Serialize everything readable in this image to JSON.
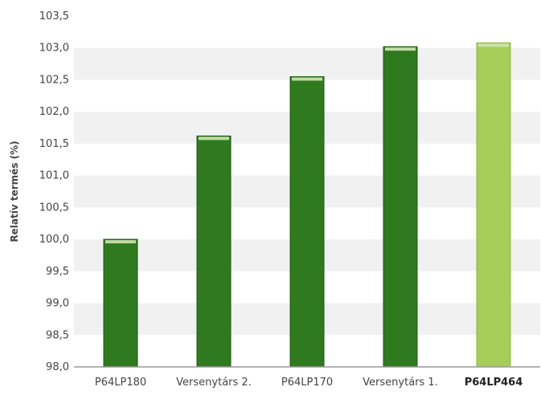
{
  "chart_data": {
    "type": "bar",
    "ylabel": "Relatív termés (%)",
    "categories": [
      "P64LP180",
      "Versenytárs 2.",
      "P64LP170",
      "Versenytárs 1.",
      "P64LP464"
    ],
    "values": [
      100.0,
      101.62,
      102.55,
      103.02,
      103.08
    ],
    "ylim": [
      98.0,
      103.5
    ],
    "ytick_labels": [
      "98,0",
      "98,5",
      "99,0",
      "99,5",
      "100,0",
      "100,5",
      "101,0",
      "101,5",
      "102,0",
      "102,5",
      "103,0",
      "103,5"
    ],
    "highlighted_category": "P64LP464",
    "grid": true,
    "colors": {
      "bar": "#2f7a1e",
      "bar_edge": "#1f5a12",
      "bar_highlight": "#a6cd57",
      "bar_highlight_edge": "#8db842",
      "bar_cap": "#cfe6b3",
      "band": "#f1f1f1",
      "axis": "#9a9a9a",
      "text": "#444444"
    }
  }
}
